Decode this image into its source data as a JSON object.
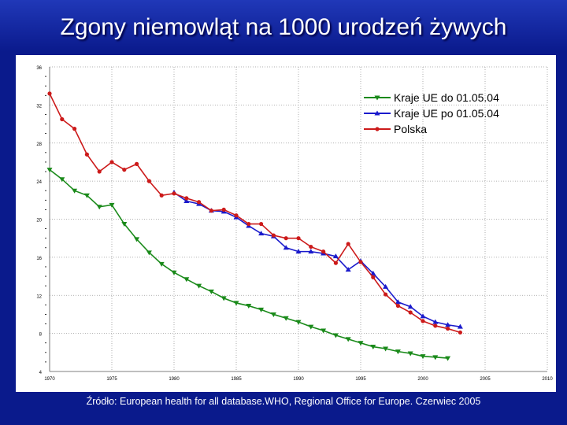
{
  "page": {
    "title": "Zgony niemowląt na 1000 urodzeń żywych",
    "source": "Źródło: European health for all database.WHO, Regional Office for Europe. Czerwiec 2005"
  },
  "colors": {
    "background": "#0a1a8c",
    "panel": "#ffffff",
    "grid": "#888888"
  },
  "chart_data": {
    "type": "line",
    "title": "",
    "xlabel": "",
    "ylabel": "",
    "xlim": [
      1970,
      2010
    ],
    "ylim": [
      4,
      36
    ],
    "x_ticks": [
      1970,
      1975,
      1980,
      1985,
      1990,
      1995,
      2000,
      2005,
      2010
    ],
    "y_ticks": [
      4,
      8,
      12,
      16,
      20,
      24,
      28,
      32,
      36
    ],
    "grid": true,
    "legend_position": "top-right",
    "series": [
      {
        "name": "Kraje UE do 01.05.04",
        "color": "#1a8a1a",
        "marker": "triangle-down",
        "x": [
          1970,
          1971,
          1972,
          1973,
          1974,
          1975,
          1976,
          1977,
          1978,
          1979,
          1980,
          1981,
          1982,
          1983,
          1984,
          1985,
          1986,
          1987,
          1988,
          1989,
          1990,
          1991,
          1992,
          1993,
          1994,
          1995,
          1996,
          1997,
          1998,
          1999,
          2000,
          2001,
          2002
        ],
        "y": [
          25.2,
          24.2,
          23.0,
          22.5,
          21.3,
          21.5,
          19.5,
          17.9,
          16.5,
          15.3,
          14.4,
          13.7,
          13.0,
          12.4,
          11.7,
          11.2,
          10.9,
          10.5,
          10.0,
          9.6,
          9.2,
          8.7,
          8.3,
          7.8,
          7.4,
          7.0,
          6.6,
          6.4,
          6.1,
          5.9,
          5.6,
          5.5,
          5.4
        ]
      },
      {
        "name": "Kraje UE po 01.05.04",
        "color": "#1a1acc",
        "marker": "triangle-up",
        "x": [
          1980,
          1981,
          1982,
          1983,
          1984,
          1985,
          1986,
          1987,
          1988,
          1989,
          1990,
          1991,
          1992,
          1993,
          1994,
          1995,
          1996,
          1997,
          1998,
          1999,
          2000,
          2001,
          2002,
          2003
        ],
        "y": [
          22.8,
          21.9,
          21.6,
          20.9,
          20.8,
          20.2,
          19.3,
          18.5,
          18.2,
          17.0,
          16.6,
          16.6,
          16.4,
          16.1,
          14.7,
          15.6,
          14.3,
          12.9,
          11.3,
          10.8,
          9.8,
          9.2,
          8.9,
          8.7
        ]
      },
      {
        "name": "Polska",
        "color": "#cc1a1a",
        "marker": "circle",
        "x": [
          1970,
          1971,
          1972,
          1973,
          1974,
          1975,
          1976,
          1977,
          1978,
          1979,
          1980,
          1981,
          1982,
          1983,
          1984,
          1985,
          1986,
          1987,
          1988,
          1989,
          1990,
          1991,
          1992,
          1993,
          1994,
          1995,
          1996,
          1997,
          1998,
          1999,
          2000,
          2001,
          2002,
          2003
        ],
        "y": [
          33.2,
          30.5,
          29.5,
          26.8,
          25.0,
          26.0,
          25.2,
          25.8,
          24.0,
          22.5,
          22.7,
          22.2,
          21.8,
          20.9,
          21.0,
          20.4,
          19.5,
          19.5,
          18.3,
          18.0,
          18.0,
          17.1,
          16.6,
          15.4,
          17.4,
          15.5,
          13.9,
          12.1,
          10.9,
          10.2,
          9.3,
          8.8,
          8.5,
          8.1
        ]
      }
    ]
  }
}
